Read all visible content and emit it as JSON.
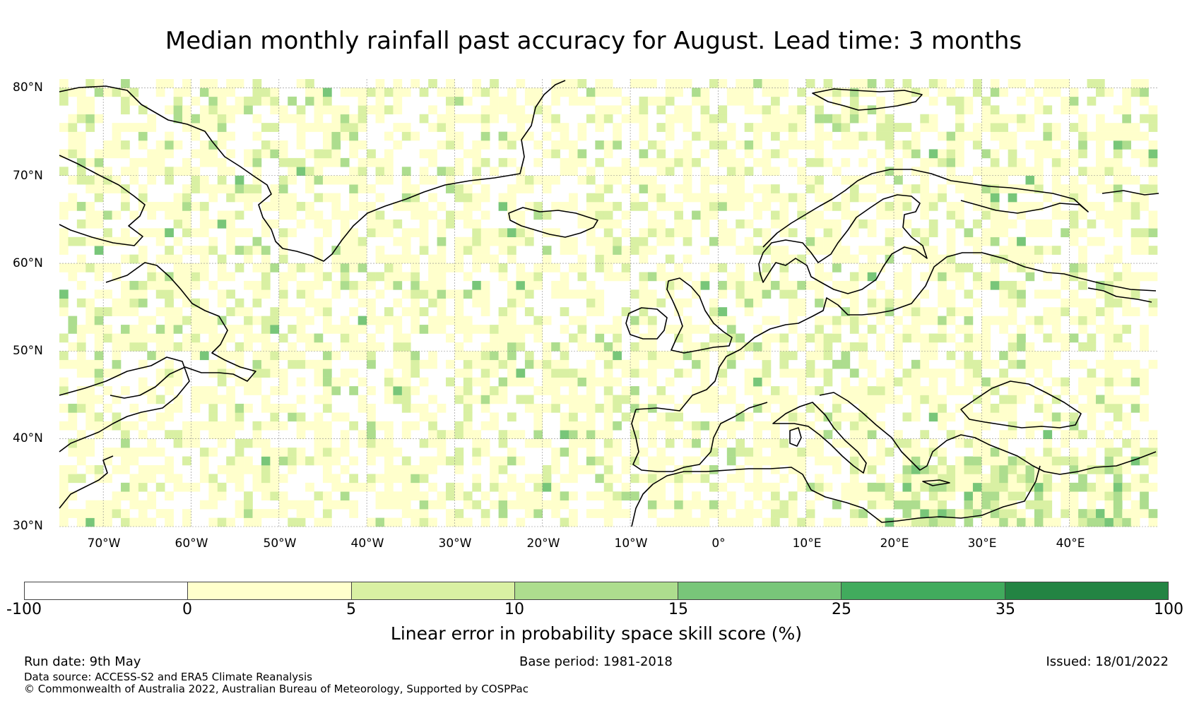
{
  "title": "Median monthly rainfall past accuracy for August. Lead time: 3 months",
  "map": {
    "extent": {
      "lon_min": -75,
      "lon_max": 50,
      "lat_min": 30,
      "lat_max": 81
    },
    "lat_labels": [
      "80°N",
      "70°N",
      "60°N",
      "50°N",
      "40°N",
      "30°N"
    ],
    "lon_labels": [
      "70°W",
      "60°W",
      "50°W",
      "40°W",
      "30°W",
      "20°W",
      "10°W",
      "0°",
      "10°E",
      "20°E",
      "30°E",
      "40°E"
    ],
    "colors": {
      "coastline": "#000000",
      "gridline": "#888888"
    }
  },
  "legend": {
    "title": "Linear error in probability space skill score (%)",
    "ticks": [
      "-100",
      "0",
      "5",
      "10",
      "15",
      "25",
      "35",
      "100"
    ],
    "colors": [
      "#ffffff",
      "#ffffcc",
      "#d9f0a3",
      "#addd8e",
      "#78c679",
      "#41ab5d",
      "#238443"
    ]
  },
  "footer": {
    "run_date": "Run date: 9th May",
    "base_period": "Base period: 1981-2018",
    "issued": "Issued: 18/01/2022",
    "data_source": "Data source: ACCESS-S2 and ERA5 Climate Reanalysis",
    "copyright": "© Commonwealth of Australia 2022, Australian Bureau of Meteorology, Supported by COSPPac"
  }
}
